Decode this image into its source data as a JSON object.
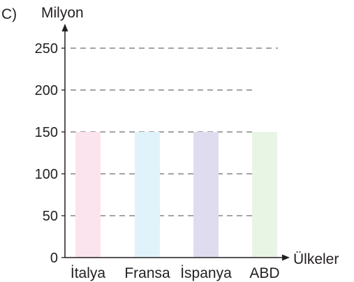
{
  "option_label": "C)",
  "chart_data": {
    "type": "bar",
    "ylabel": "Milyon",
    "xlabel": "Ülkeler",
    "categories": [
      "İtalya",
      "Fransa",
      "İspanya",
      "ABD"
    ],
    "values": [
      150,
      150,
      150,
      150
    ],
    "ylim": [
      0,
      250
    ],
    "yticks": [
      0,
      50,
      100,
      150,
      200,
      250
    ],
    "grid": "dashed horizontal",
    "bar_colors": [
      "#fce4ef",
      "#e1f3fa",
      "#e0dcef",
      "#e8f5e5"
    ],
    "axis_color": "#231f20",
    "grid_color": "#6d6e71"
  }
}
